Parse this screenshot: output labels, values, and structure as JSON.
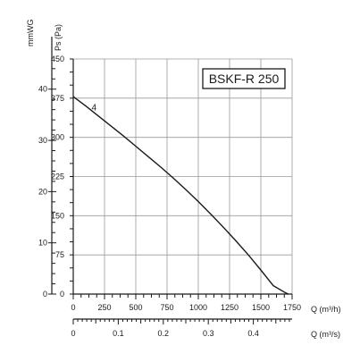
{
  "chart_data": {
    "type": "line",
    "title": "BSKF-R 250",
    "left_axis": {
      "label": "mmWG",
      "ticks": [
        "0",
        "10",
        "20",
        "30",
        "40"
      ],
      "values": [
        0,
        10,
        20,
        30,
        40
      ]
    },
    "y_axis": {
      "label": "Ps (Pa)",
      "ticks": [
        "0",
        "75",
        "150",
        "225",
        "300",
        "375",
        "450"
      ],
      "values": [
        0,
        75,
        150,
        225,
        300,
        375,
        450
      ],
      "ylim": [
        0,
        450
      ]
    },
    "x_axis": {
      "label": "Q (m³/h)",
      "ticks": [
        "0",
        "250",
        "500",
        "750",
        "1000",
        "1250",
        "1500",
        "1750"
      ],
      "values": [
        0,
        250,
        500,
        750,
        1000,
        1250,
        1500,
        1750
      ],
      "xlim": [
        0,
        1750
      ]
    },
    "x2_axis": {
      "label": "Q (m³/s)",
      "ticks": [
        "0",
        "0.1",
        "0.2",
        "0.3",
        "0.4"
      ],
      "values": [
        0,
        0.1,
        0.2,
        0.3,
        0.4
      ]
    },
    "grid": true,
    "series": [
      {
        "name": "4",
        "x": [
          0,
          100,
          200,
          300,
          400,
          500,
          600,
          700,
          800,
          900,
          1000,
          1100,
          1200,
          1300,
          1400,
          1500,
          1600,
          1700,
          1720
        ],
        "y": [
          378,
          360,
          341,
          322,
          303,
          283,
          263,
          243,
          222,
          200,
          177,
          153,
          128,
          102,
          75,
          46,
          16,
          2,
          0
        ]
      }
    ]
  }
}
